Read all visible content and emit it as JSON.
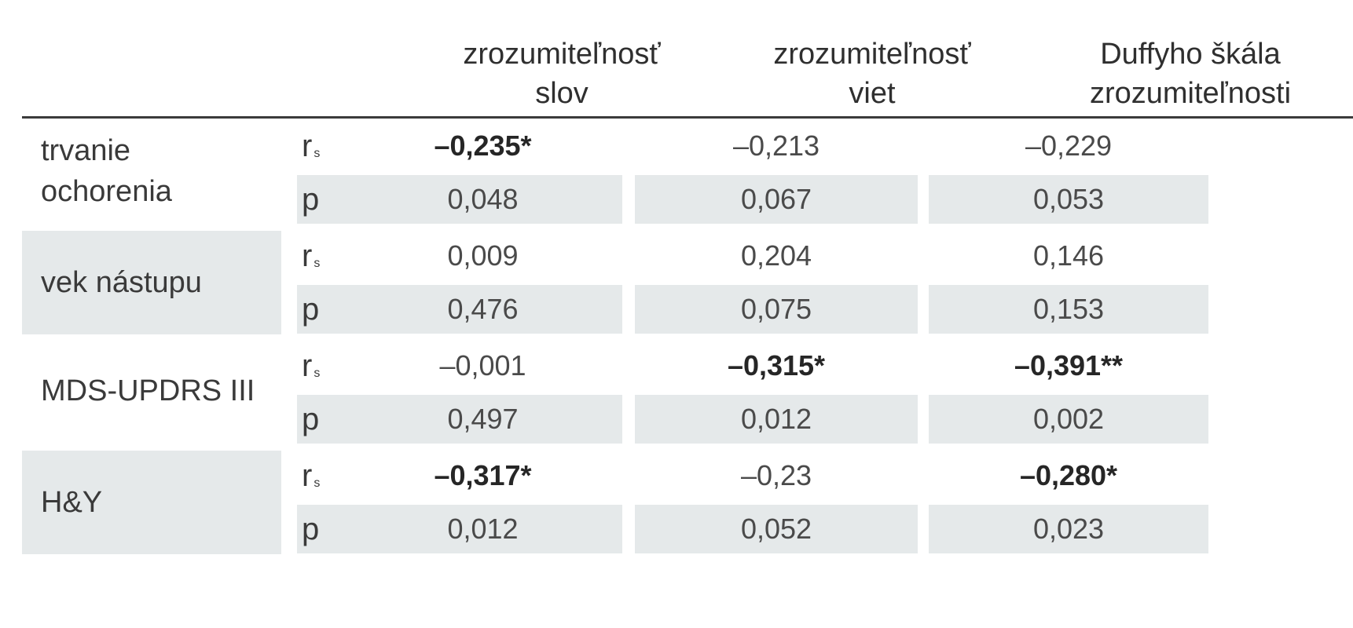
{
  "columns": [
    {
      "line1": "zrozumiteľnosť",
      "line2": "slov"
    },
    {
      "line1": "zrozumiteľnosť",
      "line2": "viet"
    },
    {
      "line1": "Duffyho škála",
      "line2": "zrozumiteľnosti"
    }
  ],
  "stat_labels": {
    "rs_main": "r",
    "rs_sub": "s",
    "p": "p"
  },
  "rows": [
    {
      "label_line1": "trvanie",
      "label_line2": "ochorenia",
      "rs": [
        "–0,235*",
        "–0,213",
        "–0,229"
      ],
      "rs_bold": [
        true,
        false,
        false
      ],
      "p": [
        "0,048",
        "0,067",
        "0,053"
      ]
    },
    {
      "label_line1": "vek nástupu",
      "label_line2": "",
      "rs": [
        "0,009",
        "0,204",
        "0,146"
      ],
      "rs_bold": [
        false,
        false,
        false
      ],
      "p": [
        "0,476",
        "0,075",
        "0,153"
      ]
    },
    {
      "label_line1": "MDS-UPDRS III",
      "label_line2": "",
      "rs": [
        "–0,001",
        "–0,315*",
        "–0,391**"
      ],
      "rs_bold": [
        false,
        true,
        true
      ],
      "p": [
        "0,497",
        "0,012",
        "0,002"
      ]
    },
    {
      "label_line1": "H&Y",
      "label_line2": "",
      "rs": [
        "–0,317*",
        "–0,23",
        "–0,280*"
      ],
      "rs_bold": [
        true,
        false,
        true
      ],
      "p": [
        "0,012",
        "0,052",
        "0,023"
      ]
    }
  ],
  "colors": {
    "shade": "#e5e9ea",
    "rule": "#3b3b3b",
    "text": "#3a3a3a"
  }
}
